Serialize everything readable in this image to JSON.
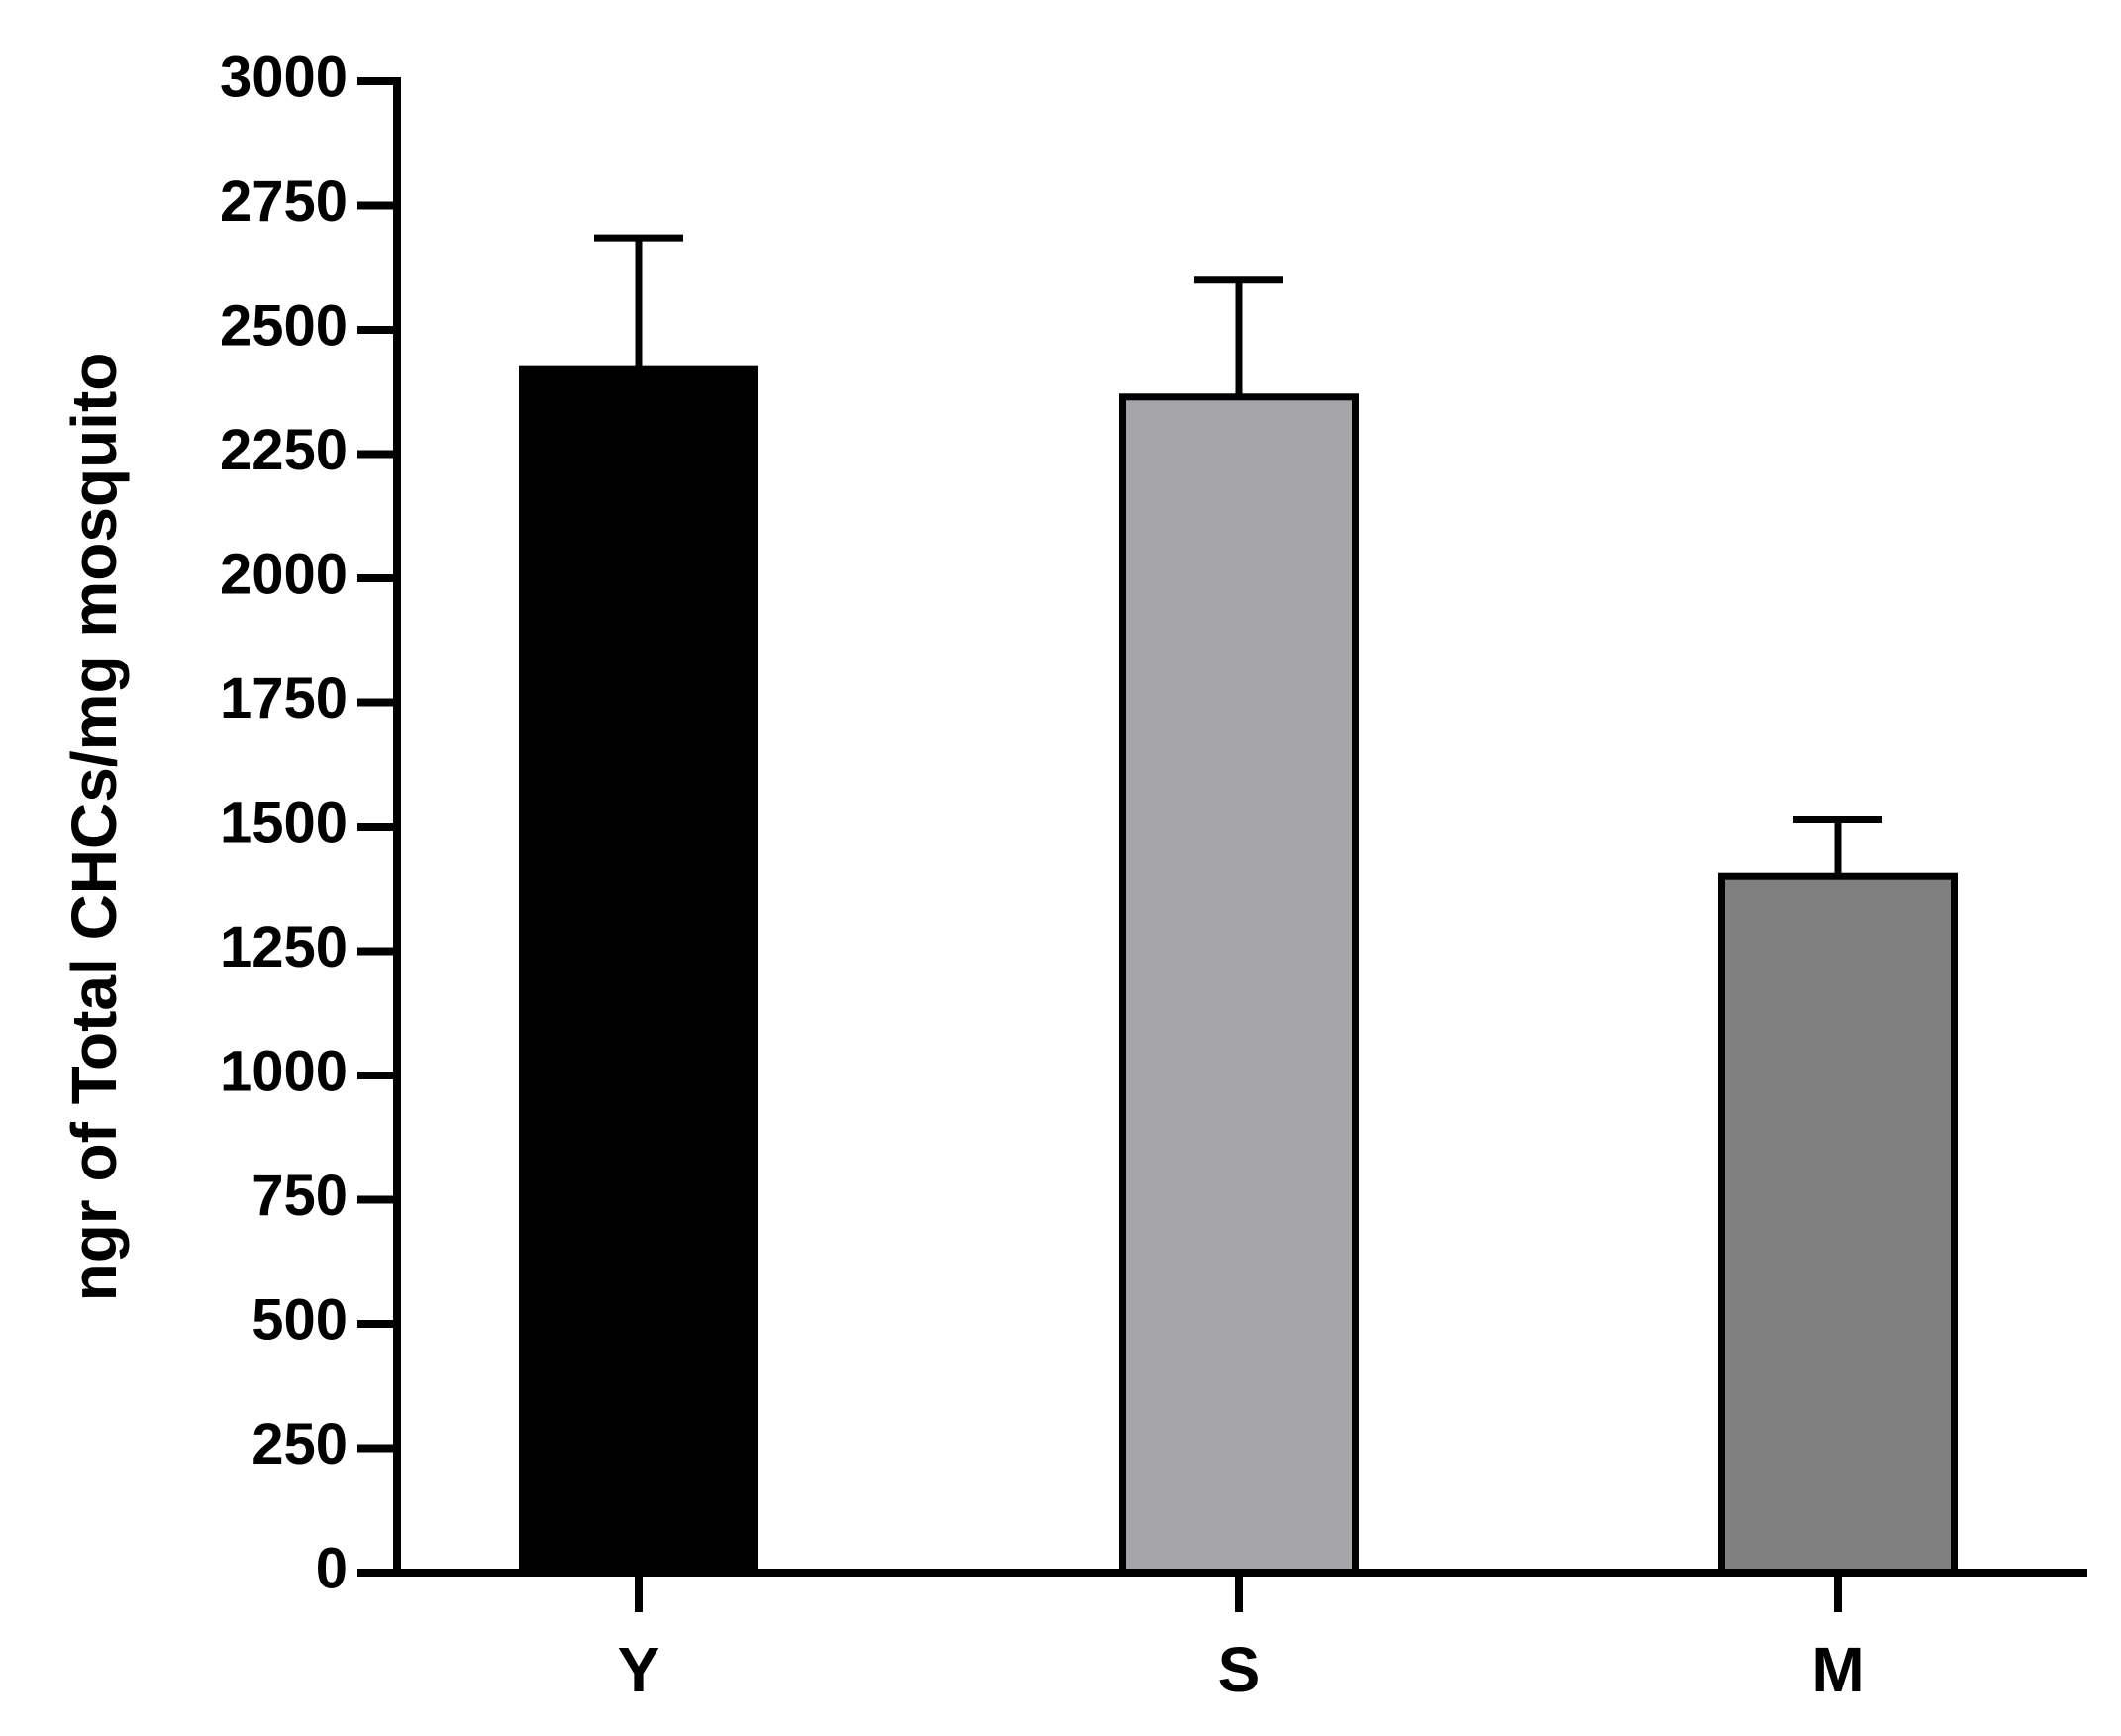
{
  "chart_data": {
    "type": "bar",
    "y_label": "ngr of Total CHCs/mg mosquito",
    "categories": [
      "Y",
      "S",
      "M"
    ],
    "values": [
      2420,
      2365,
      1400
    ],
    "errors": [
      265,
      235,
      115
    ],
    "colors": [
      "#000000",
      "#a6a6aa",
      "#808080"
    ],
    "ylim": [
      0,
      3000
    ],
    "yticks": [
      0,
      250,
      500,
      750,
      1000,
      1250,
      1500,
      1750,
      2000,
      2250,
      2500,
      2750,
      3000
    ]
  }
}
